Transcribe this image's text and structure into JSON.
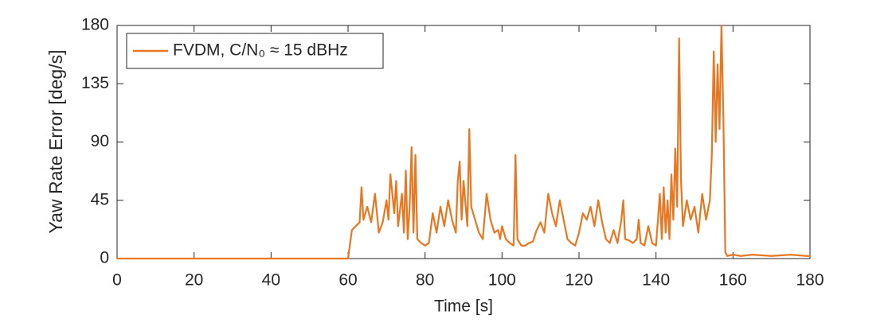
{
  "chart_data": {
    "type": "line",
    "xlabel": "Time [s]",
    "ylabel": "Yaw Rate Error [deg/s]",
    "xlim": [
      0,
      180
    ],
    "ylim": [
      0,
      180
    ],
    "xticks": [
      0,
      20,
      40,
      60,
      80,
      100,
      120,
      140,
      160,
      180
    ],
    "yticks": [
      0,
      45,
      90,
      135,
      180
    ],
    "legend_position": "upper left",
    "series": [
      {
        "name": "FVDM, C/N₀ ≈ 15 dBHz",
        "color": "#e87722",
        "x": [
          0,
          60,
          61,
          62,
          63,
          63.5,
          64,
          65,
          66,
          67,
          67.5,
          68,
          69,
          70,
          70.5,
          71,
          72,
          72.5,
          73,
          74,
          74.5,
          75,
          75.5,
          76,
          76.5,
          77,
          77.5,
          78,
          79,
          80,
          81,
          82,
          83,
          84,
          85,
          86,
          87,
          88,
          88.5,
          89,
          89.5,
          90,
          91,
          91.5,
          92,
          93,
          94,
          95,
          96,
          97,
          98,
          99,
          99.5,
          100,
          101,
          102,
          103,
          103.5,
          104,
          105,
          106,
          107,
          108,
          109,
          110,
          111,
          112,
          113,
          114,
          115,
          116,
          117,
          118,
          119,
          120,
          121,
          122,
          123,
          124,
          125,
          126,
          127,
          128,
          129,
          130,
          131,
          131.5,
          132,
          133,
          134,
          135,
          135.5,
          136,
          137,
          138,
          139,
          140,
          140.5,
          141,
          141.5,
          142,
          142.5,
          143,
          143.5,
          144,
          144.5,
          145,
          145.5,
          146,
          146.5,
          147,
          148,
          149,
          150,
          151,
          152,
          153,
          154,
          154.5,
          155,
          155.5,
          156,
          156.5,
          157,
          157.5,
          158,
          158.5,
          160,
          162,
          165,
          170,
          175,
          179,
          180
        ],
        "values": [
          0,
          0,
          22,
          25,
          28,
          55,
          30,
          40,
          28,
          50,
          35,
          20,
          28,
          45,
          30,
          65,
          35,
          60,
          25,
          50,
          20,
          68,
          15,
          40,
          86,
          20,
          80,
          15,
          12,
          10,
          12,
          35,
          20,
          40,
          25,
          45,
          30,
          20,
          60,
          75,
          30,
          60,
          25,
          100,
          40,
          30,
          20,
          15,
          50,
          30,
          20,
          22,
          15,
          25,
          15,
          12,
          10,
          80,
          15,
          10,
          10,
          12,
          13,
          22,
          28,
          20,
          50,
          35,
          25,
          45,
          30,
          15,
          12,
          10,
          20,
          35,
          30,
          40,
          25,
          45,
          28,
          15,
          12,
          22,
          12,
          30,
          45,
          15,
          14,
          12,
          15,
          30,
          12,
          10,
          25,
          12,
          10,
          30,
          50,
          15,
          55,
          20,
          45,
          15,
          65,
          30,
          85,
          40,
          170,
          60,
          25,
          45,
          30,
          40,
          20,
          50,
          30,
          45,
          80,
          160,
          90,
          150,
          100,
          180,
          110,
          5,
          2,
          3,
          2,
          3,
          2,
          3,
          2,
          2
        ]
      }
    ]
  }
}
